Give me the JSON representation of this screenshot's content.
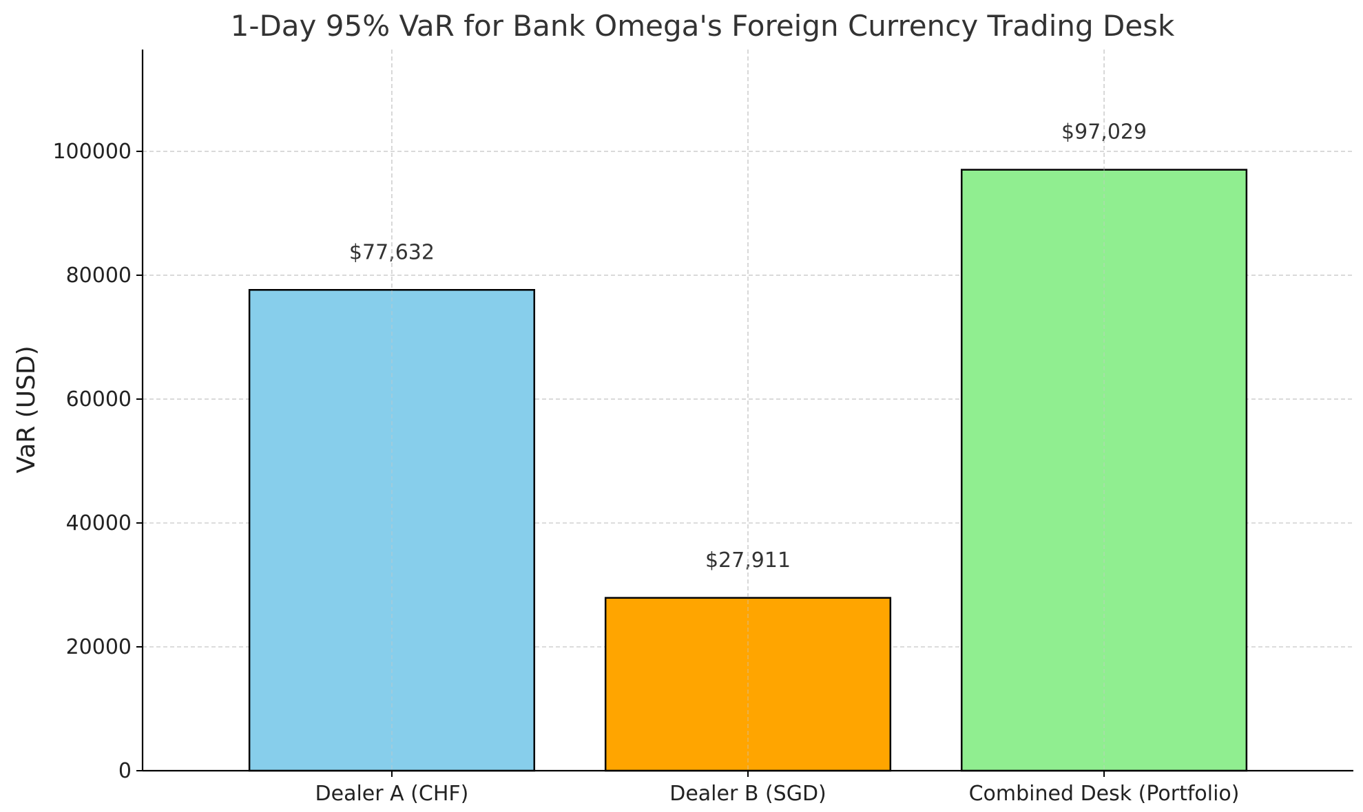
{
  "chart_data": {
    "type": "bar",
    "title": "1-Day 95% VaR for Bank Omega's Foreign Currency Trading Desk",
    "xlabel": "",
    "ylabel": "VaR (USD)",
    "categories": [
      "Dealer A (CHF)",
      "Dealer B (SGD)",
      "Combined Desk (Portfolio)"
    ],
    "values": [
      77632,
      27911,
      97029
    ],
    "data_labels": [
      "$77,632",
      "$27,911",
      "$97,029"
    ],
    "colors": [
      "#87CEEB",
      "#FFA500",
      "#90EE90"
    ],
    "ylim": [
      0,
      116435
    ],
    "yticks": [
      0,
      20000,
      40000,
      60000,
      80000,
      100000
    ],
    "grid": true,
    "legend": "none"
  }
}
